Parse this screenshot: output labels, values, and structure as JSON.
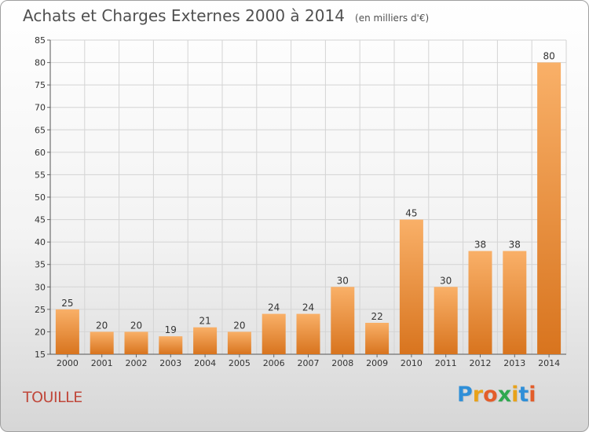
{
  "chart_data": {
    "type": "bar",
    "title": "Achats et Charges Externes 2000 à 2014",
    "subtitle": "(en milliers d'€)",
    "categories": [
      "2000",
      "2001",
      "2002",
      "2003",
      "2004",
      "2005",
      "2006",
      "2007",
      "2008",
      "2009",
      "2010",
      "2011",
      "2012",
      "2013",
      "2014"
    ],
    "values": [
      25,
      20,
      20,
      19,
      21,
      20,
      24,
      24,
      30,
      22,
      45,
      30,
      38,
      38,
      80
    ],
    "ylim": [
      15,
      85
    ],
    "yticks": [
      15,
      20,
      25,
      30,
      35,
      40,
      45,
      50,
      55,
      60,
      65,
      70,
      75,
      80,
      85
    ],
    "grid": true,
    "bar_color": "#f0923a",
    "bar_color_light": "#f9b068",
    "bar_color_dark": "#d8741e"
  },
  "location_label": "TOUILLE",
  "logo": {
    "letters": [
      "P",
      "r",
      "o",
      "x",
      "i",
      "t",
      "i"
    ],
    "colors": [
      "#2f8fd8",
      "#e8a21a",
      "#e35d2a",
      "#2fa84f",
      "#e8a21a",
      "#2f8fd8",
      "#e35d2a"
    ]
  }
}
